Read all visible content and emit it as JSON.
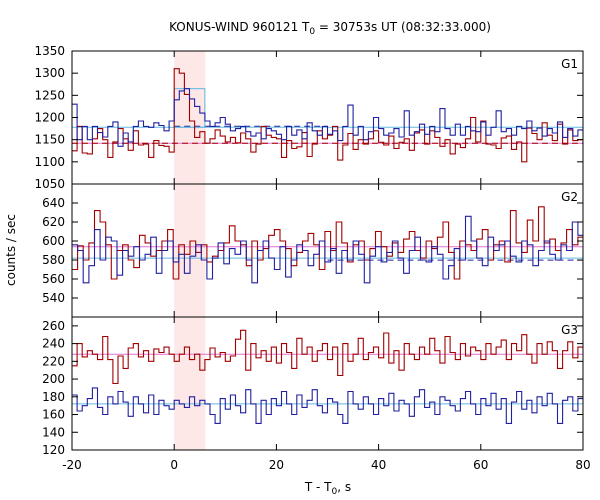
{
  "chart_data": {
    "type": "line",
    "title": "KONUS-WIND 960121 T0 = 30753s UT (08:32:33.000)",
    "title_parts": {
      "prefix": "KONUS-WIND 960121 T",
      "sub": "0",
      "suffix": " = 30753s UT (08:32:33.000)"
    },
    "xlabel": "T - T0, s",
    "xlabel_parts": {
      "prefix": "T - T",
      "sub": "0",
      "suffix": ", s"
    },
    "ylabel": "counts / sec",
    "xlim": [
      -20,
      80
    ],
    "x_ticks": [
      -20,
      0,
      20,
      40,
      60,
      80
    ],
    "highlight_interval": [
      0,
      6.1
    ],
    "colors": {
      "dark_red": "#a00000",
      "dark_blue": "#2020a0",
      "pink": "#e070d0",
      "light_blue": "#60b8e0",
      "highlight": "#fde7e7"
    },
    "panels": [
      {
        "label": "G1",
        "ylim": [
          1050,
          1350
        ],
        "y_ticks": [
          1050,
          1100,
          1150,
          1200,
          1250,
          1300,
          1350
        ],
        "background": {
          "red": 1142,
          "blue": 1178
        },
        "bin_width": 1,
        "highlight_box": {
          "x0": 0,
          "x1": 6,
          "y0": 1178,
          "y1": 1265
        },
        "red_values": [
          1125,
          1180,
          1120,
          1118,
          1152,
          1175,
          1150,
          1110,
          1145,
          1175,
          1152,
          1126,
          1170,
          1138,
          1140,
          1110,
          1148,
          1137,
          1135,
          1122,
          1310,
          1300,
          1252,
          1192,
          1155,
          1168,
          1142,
          1152,
          1172,
          1158,
          1145,
          1155,
          1143,
          1165,
          1152,
          1122,
          1140,
          1180,
          1160,
          1155,
          1152,
          1110,
          1148,
          1130,
          1134,
          1166,
          1112,
          1140,
          1170,
          1152,
          1160,
          1180,
          1104,
          1138,
          1164,
          1128,
          1150,
          1140,
          1152,
          1170,
          1144,
          1138,
          1158,
          1130,
          1144,
          1152,
          1126,
          1165,
          1172,
          1140,
          1170,
          1155,
          1135,
          1150,
          1118,
          1140,
          1132,
          1152,
          1200,
          1145,
          1192,
          1140,
          1138,
          1130,
          1154,
          1158,
          1128,
          1145,
          1100,
          1176,
          1164,
          1150,
          1188,
          1160,
          1148,
          1185,
          1140,
          1172,
          1148,
          1150
        ],
        "blue_values": [
          1230,
          1150,
          1180,
          1150,
          1180,
          1166,
          1156,
          1180,
          1190,
          1135,
          1165,
          1145,
          1180,
          1192,
          1180,
          1178,
          1188,
          1182,
          1170,
          1192,
          1240,
          1260,
          1265,
          1242,
          1225,
          1210,
          1192,
          1180,
          1188,
          1200,
          1185,
          1170,
          1175,
          1180,
          1168,
          1158,
          1165,
          1152,
          1175,
          1170,
          1162,
          1150,
          1180,
          1160,
          1172,
          1152,
          1188,
          1170,
          1160,
          1180,
          1162,
          1170,
          1148,
          1180,
          1228,
          1160,
          1180,
          1150,
          1168,
          1200,
          1175,
          1160,
          1165,
          1175,
          1156,
          1215,
          1160,
          1168,
          1185,
          1162,
          1180,
          1168,
          1220,
          1175,
          1160,
          1185,
          1160,
          1180,
          1170,
          1168,
          1190,
          1160,
          1178,
          1215,
          1168,
          1175,
          1160,
          1180,
          1175,
          1192,
          1170,
          1176,
          1158,
          1175,
          1165,
          1190,
          1155,
          1175,
          1158,
          1172
        ]
      },
      {
        "label": "G2",
        "ylim": [
          520,
          660
        ],
        "y_ticks": [
          540,
          560,
          580,
          600,
          620,
          640
        ],
        "background": {
          "red": 594,
          "blue": 582
        },
        "bin_width": 1.1,
        "red_values": [
          570,
          595,
          580,
          598,
          632,
          620,
          596,
          560,
          590,
          596,
          580,
          572,
          606,
          598,
          584,
          590,
          600,
          612,
          560,
          596,
          586,
          600,
          588,
          596,
          578,
          584,
          590,
          598,
          616,
          600,
          596,
          574,
          600,
          580,
          592,
          606,
          612,
          600,
          592,
          574,
          588,
          600,
          608,
          596,
          570,
          610,
          590,
          620,
          598,
          578,
          596,
          600,
          580,
          592,
          610,
          594,
          584,
          598,
          588,
          602,
          610,
          590,
          582,
          600,
          592,
          604,
          620,
          588,
          560,
          600,
          596,
          590,
          602,
          612,
          580,
          596,
          600,
          578,
          632,
          598,
          588,
          622,
          600,
          636,
          598,
          602,
          590,
          598,
          612,
          596,
          604
        ],
        "blue_values": [
          596,
          590,
          556,
          574,
          612,
          580,
          604,
          600,
          564,
          590,
          584,
          594,
          580,
          586,
          604,
          566,
          590,
          600,
          578,
          586,
          566,
          584,
          596,
          580,
          560,
          582,
          598,
          576,
          592,
          586,
          600,
          580,
          556,
          590,
          600,
          582,
          570,
          594,
          562,
          580,
          596,
          590,
          574,
          586,
          600,
          578,
          592,
          566,
          590,
          580,
          600,
          586,
          556,
          584,
          594,
          578,
          588,
          600,
          582,
          566,
          590,
          604,
          580,
          578,
          594,
          586,
          560,
          574,
          592,
          580,
          626,
          600,
          582,
          574,
          604,
          590,
          596,
          600,
          584,
          578,
          600,
          596,
          574,
          590,
          600,
          586,
          580,
          596,
          590,
          620,
          606
        ]
      },
      {
        "label": "G3",
        "ylim": [
          120,
          270
        ],
        "y_ticks": [
          120,
          140,
          160,
          180,
          200,
          220,
          240,
          260
        ],
        "background": {
          "red": 228,
          "blue": 172
        },
        "bin_width": 1,
        "red_values": [
          215,
          240,
          225,
          232,
          228,
          222,
          248,
          222,
          195,
          226,
          212,
          235,
          240,
          225,
          232,
          220,
          234,
          230,
          236,
          228,
          220,
          228,
          236,
          222,
          228,
          210,
          222,
          235,
          225,
          230,
          220,
          226,
          245,
          255,
          210,
          240,
          224,
          232,
          220,
          236,
          218,
          240,
          230,
          212,
          246,
          228,
          236,
          220,
          232,
          240,
          222,
          236,
          204,
          240,
          220,
          228,
          246,
          222,
          230,
          236,
          224,
          252,
          218,
          232,
          210,
          240,
          228,
          222,
          236,
          228,
          246,
          232,
          218,
          248,
          230,
          222,
          240,
          226,
          236,
          232,
          222,
          240,
          228,
          236,
          244,
          222,
          240,
          232,
          250,
          228,
          218,
          240,
          228,
          242,
          232,
          212,
          232,
          242,
          224,
          236
        ],
        "blue_values": [
          182,
          164,
          170,
          178,
          190,
          168,
          160,
          180,
          172,
          186,
          174,
          158,
          180,
          172,
          162,
          182,
          160,
          176,
          170,
          166,
          176,
          172,
          168,
          180,
          170,
          176,
          172,
          160,
          150,
          178,
          166,
          182,
          170,
          162,
          188,
          172,
          150,
          176,
          160,
          178,
          170,
          186,
          172,
          160,
          182,
          168,
          176,
          188,
          170,
          162,
          178,
          174,
          160,
          150,
          186,
          172,
          166,
          180,
          172,
          160,
          178,
          170,
          184,
          164,
          176,
          172,
          158,
          180,
          188,
          168,
          174,
          160,
          180,
          176,
          170,
          164,
          178,
          186,
          172,
          160,
          178,
          170,
          184,
          166,
          178,
          150,
          174,
          186,
          166,
          176,
          162,
          180,
          170,
          184,
          172,
          150,
          176,
          180,
          164,
          178
        ]
      }
    ]
  }
}
